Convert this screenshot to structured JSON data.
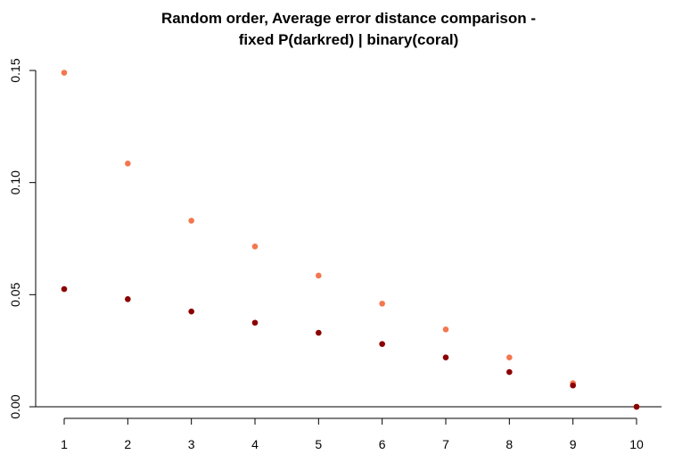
{
  "chart_data": {
    "type": "scatter",
    "title_line1": "Random order, Average error distance comparison -",
    "title_line2": "fixed P(darkred) | binary(coral)",
    "xlabel": "",
    "ylabel": "",
    "x_ticks": [
      "1",
      "2",
      "3",
      "4",
      "5",
      "6",
      "7",
      "8",
      "9",
      "10"
    ],
    "y_ticks": [
      "0.00",
      "0.05",
      "0.10",
      "0.15"
    ],
    "xlim": [
      1,
      10
    ],
    "ylim": [
      0,
      0.15
    ],
    "x": [
      1,
      2,
      3,
      4,
      5,
      6,
      7,
      8,
      9,
      10
    ],
    "series": [
      {
        "color": "#f4774f",
        "values": [
          0.149,
          0.1085,
          0.083,
          0.0715,
          0.0585,
          0.046,
          0.0345,
          0.022,
          0.0105,
          0.0
        ]
      },
      {
        "color": "#8b0000",
        "values": [
          0.0525,
          0.048,
          0.0425,
          0.0375,
          0.033,
          0.028,
          0.022,
          0.0155,
          0.0095,
          0.0
        ]
      }
    ],
    "grid": false,
    "legend": "none"
  }
}
